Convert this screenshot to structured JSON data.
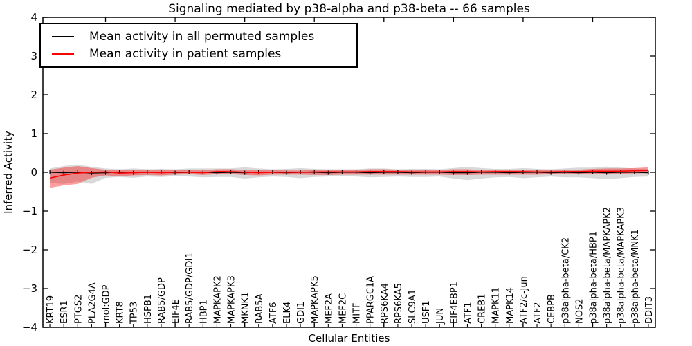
{
  "chart_data": {
    "type": "line",
    "title": "Signaling mediated by p38-alpha and p38-beta -- 66 samples",
    "xlabel": "Cellular Entities",
    "ylabel": "Inferred Activity",
    "ylim": [
      -4,
      4
    ],
    "yticks": [
      4,
      3,
      2,
      1,
      0,
      -1,
      -2,
      -3,
      -4
    ],
    "x_major_tick_every": 5,
    "grid": false,
    "legend_position": "upper left",
    "categories": [
      "KRT19",
      "ESR1",
      "PTGS2",
      "PLA2G4A",
      "mol:GDP",
      "KRT8",
      "TP53",
      "HSPB1",
      "RAB5/GDP",
      "EIF4E",
      "RAB5/GDP/GDI1",
      "HBP1",
      "MAPKAPK2",
      "MAPKAPK3",
      "MKNK1",
      "RAB5A",
      "ATF6",
      "ELK4",
      "GDI1",
      "MAPKAPK5",
      "MEF2A",
      "MEF2C",
      "MITF",
      "PPARGC1A",
      "RPS6KA4",
      "RPS6KA5",
      "SLC9A1",
      "USF1",
      "JUN",
      "EIF4EBP1",
      "ATF1",
      "CREB1",
      "MAPK11",
      "MAPK14",
      "ATF2/c-Jun",
      "ATF2",
      "CEBPB",
      "p38alpha-beta/CK2",
      "NOS2",
      "p38alpha-beta/HBP1",
      "p38alpha-beta/MAPKAPK2",
      "p38alpha-beta/MAPKAPK3",
      "p38alpha-beta/MNK1",
      "DDIT3"
    ],
    "series": [
      {
        "name": "Mean activity in all permuted samples",
        "color": "#000000",
        "band_color": "rgba(128,128,128,0.30)",
        "marker": "|",
        "values": [
          0.0,
          -0.01,
          0.0,
          -0.02,
          -0.01,
          0.0,
          -0.01,
          0.0,
          0.0,
          -0.01,
          0.0,
          0.0,
          -0.01,
          0.0,
          -0.01,
          0.0,
          0.0,
          -0.01,
          0.0,
          0.0,
          -0.01,
          0.0,
          0.0,
          -0.01,
          0.0,
          0.0,
          -0.01,
          0.0,
          0.0,
          -0.01,
          -0.01,
          0.0,
          0.0,
          -0.01,
          0.0,
          0.0,
          -0.01,
          0.0,
          -0.01,
          0.0,
          -0.01,
          0.0,
          0.0,
          -0.01
        ],
        "lo": [
          -0.28,
          -0.3,
          -0.24,
          -0.3,
          -0.14,
          -0.12,
          -0.14,
          -0.11,
          -0.12,
          -0.1,
          -0.11,
          -0.13,
          -0.12,
          -0.12,
          -0.16,
          -0.13,
          -0.11,
          -0.12,
          -0.15,
          -0.12,
          -0.11,
          -0.1,
          -0.11,
          -0.13,
          -0.12,
          -0.11,
          -0.12,
          -0.12,
          -0.11,
          -0.16,
          -0.2,
          -0.16,
          -0.13,
          -0.12,
          -0.15,
          -0.13,
          -0.11,
          -0.13,
          -0.13,
          -0.15,
          -0.18,
          -0.15,
          -0.12,
          -0.11
        ],
        "hi": [
          0.1,
          0.16,
          0.2,
          0.14,
          0.1,
          0.08,
          0.1,
          0.08,
          0.09,
          0.08,
          0.1,
          0.1,
          0.1,
          0.1,
          0.13,
          0.1,
          0.08,
          0.09,
          0.11,
          0.09,
          0.08,
          0.08,
          0.08,
          0.1,
          0.1,
          0.08,
          0.09,
          0.09,
          0.08,
          0.11,
          0.14,
          0.11,
          0.09,
          0.09,
          0.11,
          0.09,
          0.08,
          0.1,
          0.12,
          0.12,
          0.15,
          0.12,
          0.1,
          0.09
        ]
      },
      {
        "name": "Mean activity in patient samples",
        "color": "#ff0000",
        "band_color": "rgba(255,0,0,0.38)",
        "marker": "",
        "values": [
          -0.15,
          -0.07,
          -0.02,
          0.0,
          0.01,
          -0.02,
          -0.01,
          0.0,
          -0.01,
          0.0,
          0.0,
          -0.01,
          0.02,
          0.02,
          0.0,
          -0.01,
          0.0,
          0.0,
          0.0,
          0.01,
          0.01,
          0.01,
          0.01,
          0.02,
          0.02,
          0.02,
          0.01,
          0.01,
          0.01,
          0.02,
          0.02,
          0.01,
          0.02,
          0.02,
          0.02,
          0.01,
          0.01,
          0.02,
          0.02,
          0.03,
          0.03,
          0.03,
          0.04,
          0.05
        ],
        "lo": [
          -0.4,
          -0.34,
          -0.3,
          -0.14,
          -0.08,
          -0.1,
          -0.08,
          -0.07,
          -0.08,
          -0.06,
          -0.05,
          -0.07,
          -0.05,
          -0.05,
          -0.07,
          -0.08,
          -0.06,
          -0.06,
          -0.06,
          -0.07,
          -0.07,
          -0.06,
          -0.06,
          -0.06,
          -0.06,
          -0.06,
          -0.06,
          -0.06,
          -0.06,
          -0.07,
          -0.07,
          -0.06,
          -0.06,
          -0.06,
          -0.06,
          -0.06,
          -0.05,
          -0.05,
          -0.05,
          -0.04,
          -0.04,
          -0.04,
          -0.03,
          -0.02
        ],
        "hi": [
          0.07,
          0.12,
          0.16,
          0.11,
          0.07,
          0.06,
          0.06,
          0.06,
          0.06,
          0.06,
          0.06,
          0.05,
          0.08,
          0.08,
          0.06,
          0.06,
          0.06,
          0.05,
          0.05,
          0.06,
          0.06,
          0.06,
          0.06,
          0.08,
          0.08,
          0.07,
          0.06,
          0.06,
          0.06,
          0.08,
          0.08,
          0.06,
          0.07,
          0.07,
          0.07,
          0.06,
          0.06,
          0.07,
          0.07,
          0.09,
          0.1,
          0.1,
          0.11,
          0.13
        ]
      }
    ]
  }
}
